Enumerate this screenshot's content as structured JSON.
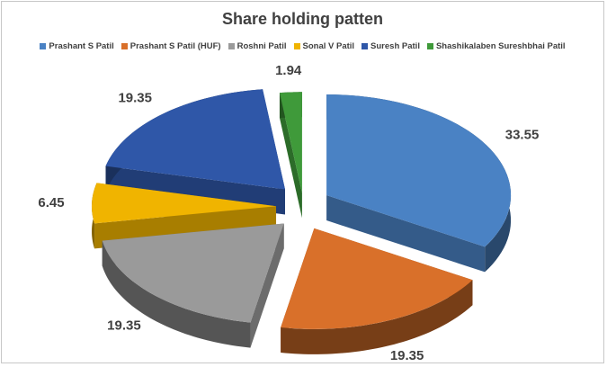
{
  "chart_data": {
    "type": "pie",
    "title": "Share holding patten",
    "categories": [
      "Prashant S Patil",
      "Prashant S Patil (HUF)",
      "Roshni Patil",
      "Sonal V Patil",
      "Suresh Patil",
      "Shashikalaben Sureshbhai Patil"
    ],
    "values": [
      33.55,
      19.35,
      19.35,
      6.45,
      19.35,
      1.94
    ],
    "value_labels": [
      "33.55",
      "19.35",
      "19.35",
      "6.45",
      "19.35",
      "1.94"
    ],
    "colors": [
      "#4a82c4",
      "#d9702a",
      "#9a9a9a",
      "#f0b400",
      "#2f57a8",
      "#3f9a3a"
    ],
    "legend": "top",
    "style": "3d-exploded"
  }
}
